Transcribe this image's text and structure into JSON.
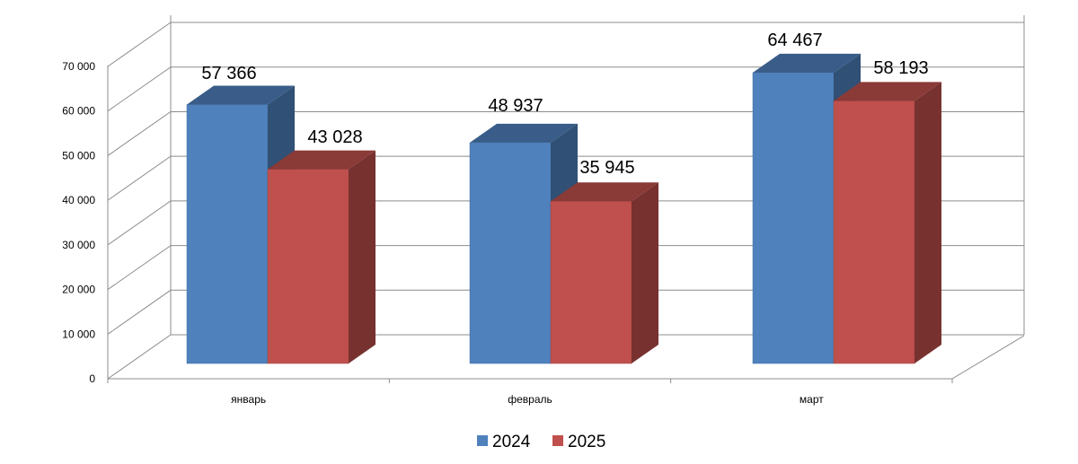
{
  "chart_data": {
    "type": "bar",
    "categories": [
      "январь",
      "февраль",
      "март"
    ],
    "series": [
      {
        "name": "2024",
        "values": [
          57366,
          48937,
          64467
        ],
        "labels": [
          "57 366",
          "48 937",
          "64 467"
        ],
        "color": "#4F81BD"
      },
      {
        "name": "2025",
        "values": [
          43028,
          35945,
          58193
        ],
        "labels": [
          "43 028",
          "35 945",
          "58 193"
        ],
        "color": "#C0504D"
      }
    ],
    "ylim": [
      0,
      70000
    ],
    "ytick_values": [
      0,
      10000,
      20000,
      30000,
      40000,
      50000,
      60000,
      70000
    ],
    "ytick_labels": [
      "0",
      "10 000",
      "20 000",
      "30 000",
      "40 000",
      "50 000",
      "60 000",
      "70 000"
    ],
    "grid": true,
    "legend_position": "bottom",
    "style": "3d-clustered-column"
  }
}
